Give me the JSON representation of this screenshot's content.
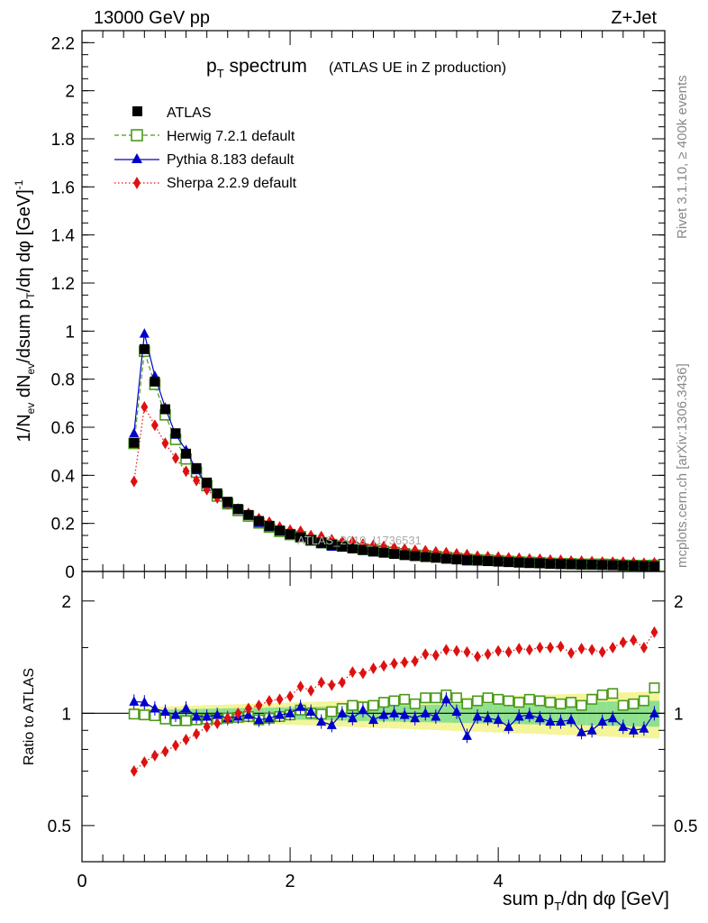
{
  "header": {
    "energy": "13000 GeV pp",
    "process": "Z+Jet"
  },
  "side_labels": {
    "rivet": "Rivet 3.1.10, ≥ 400k events",
    "mcplots": "mcplots.cern.ch [arXiv:1306.3436]"
  },
  "watermark": "ATLAS_2019_I1736531",
  "chart_data": [
    {
      "type": "line",
      "title": "p_T spectrum",
      "subtitle": "(ATLAS UE in Z production)",
      "ylabel": "1/N_ev dN_ev/dsum p_T/dη dφ [GeV]^-1",
      "xlim": [
        0,
        5.6
      ],
      "ylim": [
        0,
        2.25
      ],
      "yticks": [
        0,
        0.2,
        0.4,
        0.6,
        0.8,
        1,
        1.2,
        1.4,
        1.6,
        1.8,
        2,
        2.2
      ],
      "ytick_labels": [
        "0",
        "0.2",
        "0.4",
        "0.6",
        "0.8",
        "1",
        "1.2",
        "1.4",
        "1.6",
        "1.8",
        "2",
        "2.2"
      ],
      "x": [
        0.5,
        0.6,
        0.7,
        0.8,
        0.9,
        1.0,
        1.1,
        1.2,
        1.3,
        1.4,
        1.5,
        1.6,
        1.7,
        1.8,
        1.9,
        2.0,
        2.1,
        2.2,
        2.3,
        2.4,
        2.5,
        2.6,
        2.7,
        2.8,
        2.9,
        3.0,
        3.1,
        3.2,
        3.3,
        3.4,
        3.5,
        3.6,
        3.7,
        3.8,
        3.9,
        4.0,
        4.1,
        4.2,
        4.3,
        4.4,
        4.5,
        4.6,
        4.7,
        4.8,
        4.9,
        5.0,
        5.1,
        5.2,
        5.3,
        5.4,
        5.5
      ],
      "series": [
        {
          "name": "ATLAS",
          "marker": "square-filled",
          "color": "#000000",
          "values": [
            0.535,
            0.925,
            0.79,
            0.675,
            0.575,
            0.49,
            0.43,
            0.37,
            0.325,
            0.29,
            0.26,
            0.235,
            0.21,
            0.19,
            0.17,
            0.155,
            0.142,
            0.13,
            0.12,
            0.111,
            0.103,
            0.096,
            0.089,
            0.083,
            0.078,
            0.073,
            0.068,
            0.064,
            0.06,
            0.057,
            0.053,
            0.05,
            0.048,
            0.045,
            0.043,
            0.041,
            0.039,
            0.037,
            0.035,
            0.034,
            0.032,
            0.031,
            0.03,
            0.029,
            0.028,
            0.027,
            0.026,
            0.025,
            0.024,
            0.023,
            0.022
          ]
        },
        {
          "name": "Herwig 7.2.1 default",
          "marker": "square-open",
          "color": "#4a9a1a",
          "ratio": [
            0.995,
            0.99,
            0.985,
            0.965,
            0.955,
            0.955,
            0.96,
            0.965,
            0.965,
            0.97,
            0.975,
            0.98,
            0.96,
            0.97,
            0.98,
            0.99,
            1.02,
            1.0,
            0.995,
            1.01,
            1.03,
            1.05,
            1.04,
            1.05,
            1.07,
            1.08,
            1.09,
            1.06,
            1.1,
            1.1,
            1.12,
            1.1,
            1.06,
            1.08,
            1.1,
            1.09,
            1.08,
            1.07,
            1.09,
            1.08,
            1.07,
            1.06,
            1.07,
            1.05,
            1.09,
            1.12,
            1.13,
            1.05,
            1.06,
            1.08,
            1.17
          ]
        },
        {
          "name": "Pythia 8.183 default",
          "marker": "triangle",
          "color": "#0000cc",
          "ratio": [
            1.075,
            1.07,
            1.03,
            1.01,
            0.99,
            1.03,
            0.98,
            0.98,
            0.99,
            0.97,
            0.98,
            0.99,
            0.96,
            0.97,
            0.99,
            1.0,
            1.04,
            1.01,
            0.95,
            0.93,
            1.0,
            0.97,
            1.02,
            0.96,
            0.99,
            1.0,
            0.99,
            0.97,
            1.0,
            0.98,
            1.09,
            1.01,
            0.87,
            0.98,
            0.97,
            0.96,
            0.92,
            0.98,
            0.99,
            0.97,
            0.95,
            0.95,
            0.96,
            0.89,
            0.9,
            0.95,
            0.97,
            0.92,
            0.9,
            0.91,
            1.0
          ]
        },
        {
          "name": "Sherpa 2.2.9 default",
          "marker": "diamond",
          "color": "#dd1111",
          "ratio": [
            0.7,
            0.74,
            0.77,
            0.79,
            0.82,
            0.85,
            0.88,
            0.92,
            0.94,
            0.97,
            1.0,
            1.03,
            1.05,
            1.08,
            1.09,
            1.11,
            1.18,
            1.15,
            1.21,
            1.19,
            1.21,
            1.29,
            1.28,
            1.32,
            1.34,
            1.36,
            1.37,
            1.38,
            1.44,
            1.43,
            1.48,
            1.47,
            1.46,
            1.42,
            1.44,
            1.47,
            1.46,
            1.49,
            1.48,
            1.5,
            1.5,
            1.51,
            1.45,
            1.49,
            1.48,
            1.46,
            1.5,
            1.55,
            1.57,
            1.5,
            1.65
          ]
        }
      ],
      "legend": [
        "ATLAS",
        "Herwig 7.2.1 default",
        "Pythia 8.183 default",
        "Sherpa 2.2.9 default"
      ]
    },
    {
      "type": "line",
      "ylabel": "Ratio to ATLAS",
      "xlabel": "sum p_T/dη dφ [GeV]",
      "xlim": [
        0,
        5.6
      ],
      "ylim": [
        0.4,
        2.4
      ],
      "scale": "log",
      "yticks": [
        0.5,
        1,
        2
      ],
      "ytick_labels": [
        "0.5",
        "1",
        "2"
      ],
      "xticks": [
        0,
        2,
        4
      ],
      "xtick_labels": [
        "0",
        "2",
        "4"
      ]
    }
  ],
  "colors": {
    "band_inner": "#8fe08f",
    "band_outer": "#f4f49a",
    "reference_line": "#000000"
  }
}
